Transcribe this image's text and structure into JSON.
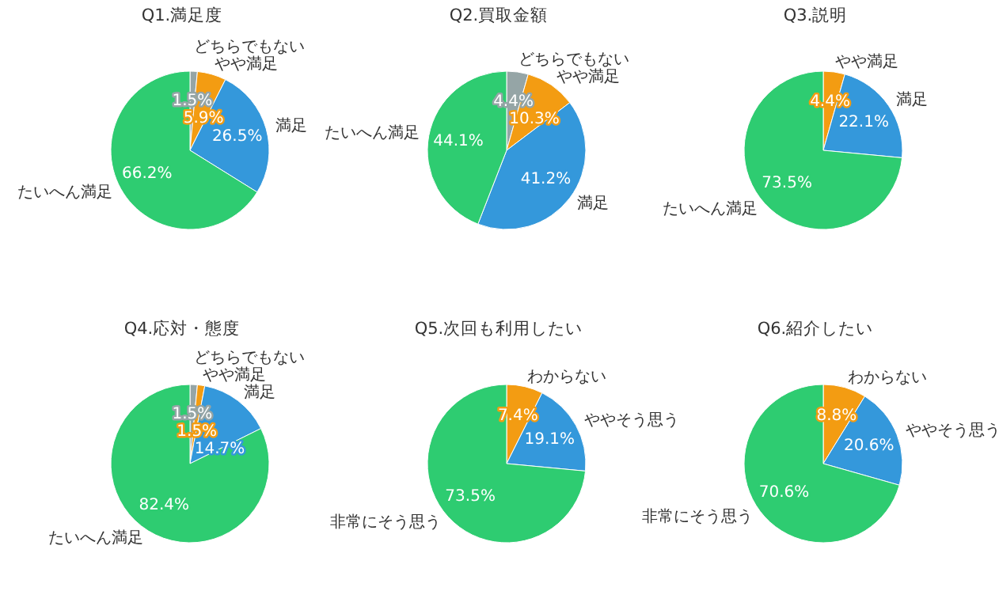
{
  "chart_data": [
    {
      "type": "pie",
      "title": "Q1.満足度",
      "categories": [
        "どちらでもない",
        "やや満足",
        "満足",
        "たいへん満足"
      ],
      "values": [
        1.5,
        5.9,
        26.5,
        66.2
      ],
      "value_labels": [
        "1.5%",
        "5.9%",
        "26.5%",
        "66.2%"
      ],
      "colors": [
        "#95a5a6",
        "#f39c12",
        "#3498db",
        "#2ecc71"
      ]
    },
    {
      "type": "pie",
      "title": "Q2.買取金額",
      "categories": [
        "どちらでもない",
        "やや満足",
        "満足",
        "たいへん満足"
      ],
      "values": [
        4.4,
        10.3,
        41.2,
        44.1
      ],
      "value_labels": [
        "4.4%",
        "10.3%",
        "41.2%",
        "44.1%"
      ],
      "colors": [
        "#95a5a6",
        "#f39c12",
        "#3498db",
        "#2ecc71"
      ]
    },
    {
      "type": "pie",
      "title": "Q3.説明",
      "categories": [
        "やや満足",
        "満足",
        "たいへん満足"
      ],
      "values": [
        4.4,
        22.1,
        73.5
      ],
      "value_labels": [
        "4.4%",
        "22.1%",
        "73.5%"
      ],
      "colors": [
        "#f39c12",
        "#3498db",
        "#2ecc71"
      ]
    },
    {
      "type": "pie",
      "title": "Q4.応対・態度",
      "categories": [
        "どちらでもない",
        "やや満足",
        "満足",
        "たいへん満足"
      ],
      "values": [
        1.5,
        1.5,
        14.7,
        82.4
      ],
      "value_labels": [
        "1.5%",
        "1.5%",
        "14.7%",
        "82.4%"
      ],
      "colors": [
        "#95a5a6",
        "#f39c12",
        "#3498db",
        "#2ecc71"
      ]
    },
    {
      "type": "pie",
      "title": "Q5.次回も利用したい",
      "categories": [
        "わからない",
        "ややそう思う",
        "非常にそう思う"
      ],
      "values": [
        7.4,
        19.1,
        73.5
      ],
      "value_labels": [
        "7.4%",
        "19.1%",
        "73.5%"
      ],
      "colors": [
        "#f39c12",
        "#3498db",
        "#2ecc71"
      ]
    },
    {
      "type": "pie",
      "title": "Q6.紹介したい",
      "categories": [
        "わからない",
        "ややそう思う",
        "非常にそう思う"
      ],
      "values": [
        8.8,
        20.6,
        70.6
      ],
      "value_labels": [
        "8.8%",
        "20.6%",
        "70.6%"
      ],
      "colors": [
        "#f39c12",
        "#3498db",
        "#2ecc71"
      ]
    }
  ]
}
